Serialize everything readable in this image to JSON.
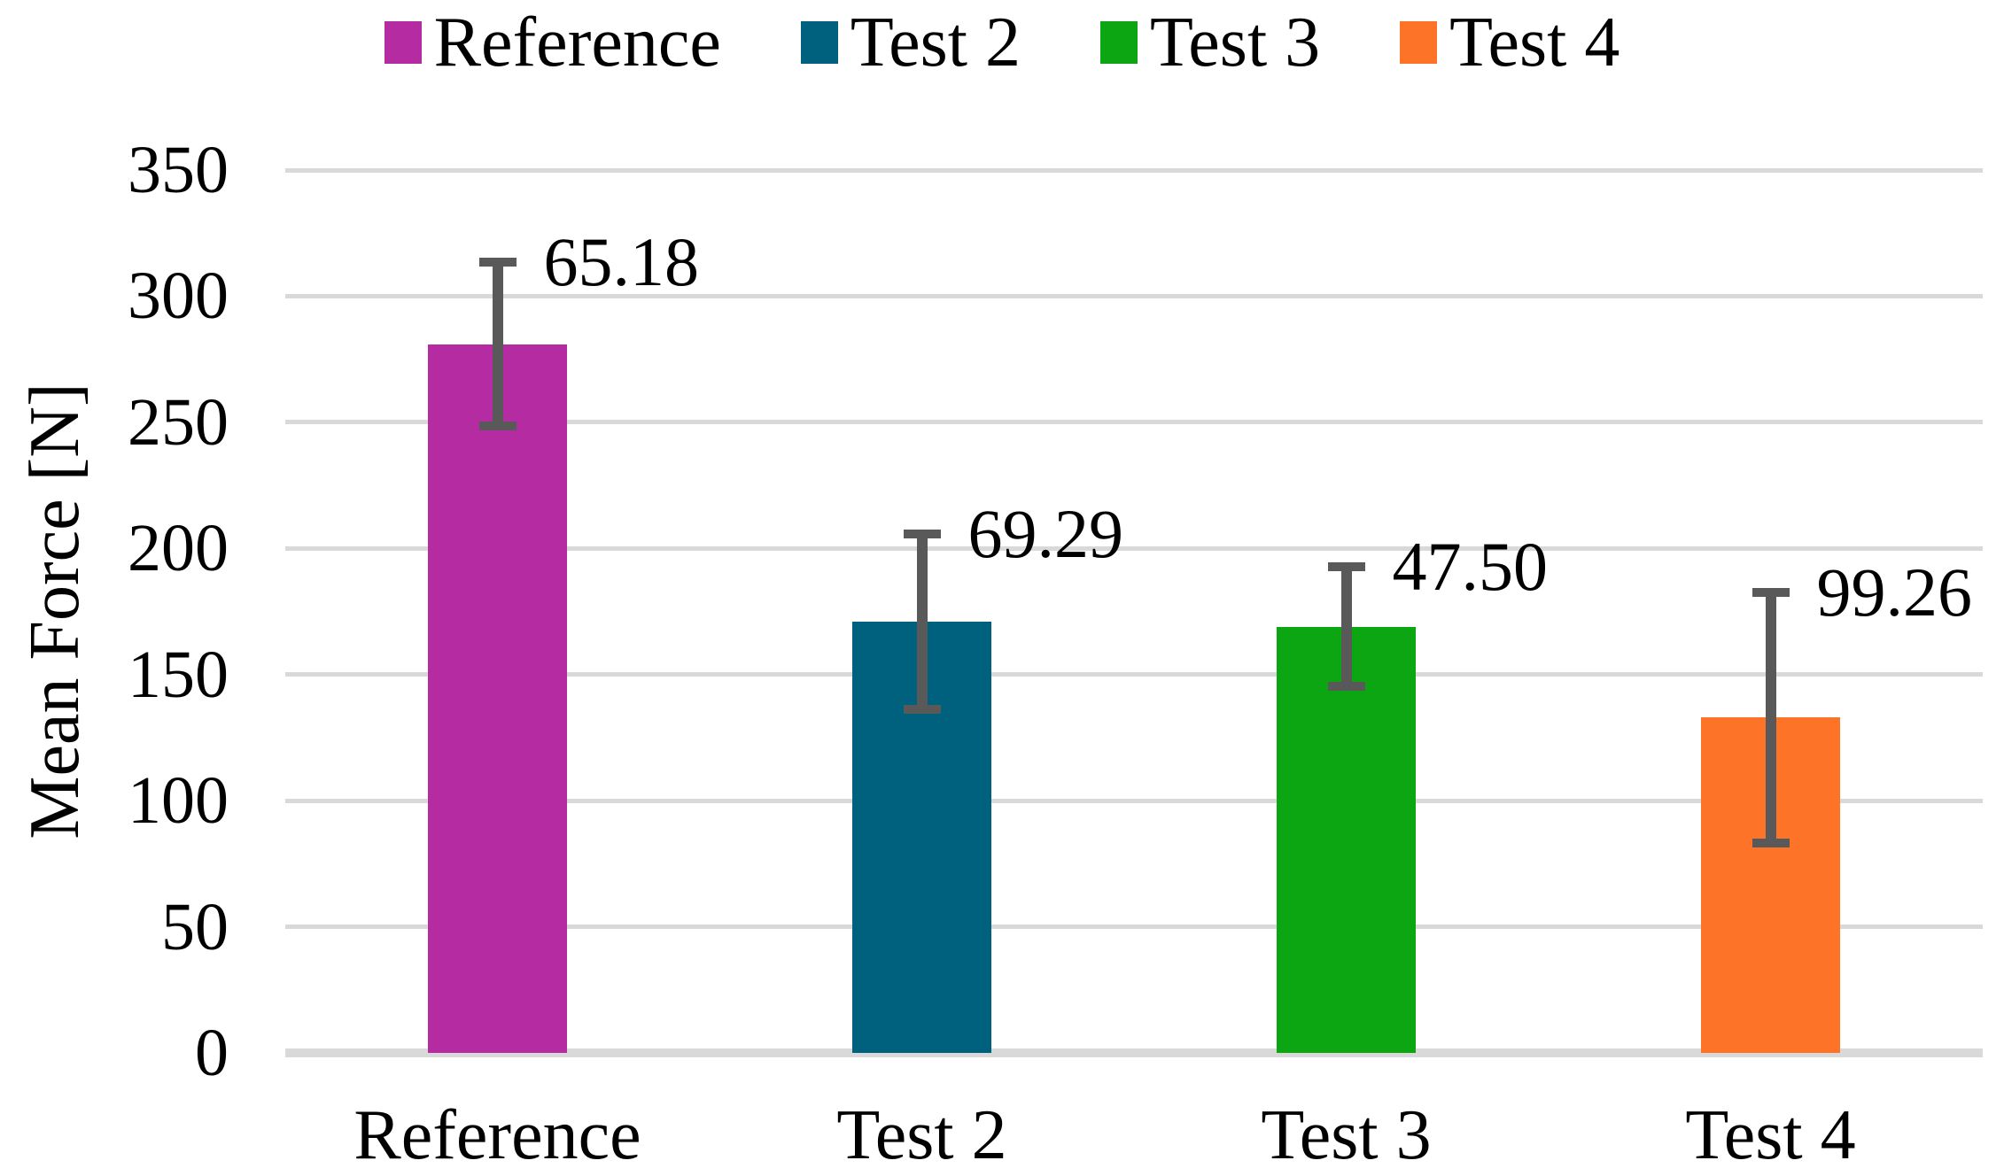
{
  "chart_data": {
    "type": "bar",
    "title": "",
    "ylabel": "Mean Force [N]",
    "xlabel": "",
    "categories": [
      "Reference",
      "Test 2",
      "Test 3",
      "Test 4"
    ],
    "values": [
      281,
      171,
      169,
      133
    ],
    "error_half_ranges": [
      32.59,
      34.65,
      23.75,
      49.63
    ],
    "error_labels": [
      "65.18",
      "69.29",
      "47.50",
      "99.26"
    ],
    "bar_colors": [
      "#B42BA2",
      "#00617F",
      "#0BA612",
      "#FD7428"
    ],
    "legend_entries": [
      "Reference",
      "Test 2",
      "Test 3",
      "Test 4"
    ],
    "legend_position": "top",
    "ylim": [
      0,
      350
    ],
    "ytick_step": 50,
    "ytick_labels": [
      "0",
      "50",
      "100",
      "150",
      "200",
      "250",
      "300",
      "350"
    ],
    "grid": "on",
    "colors": {
      "gridline": "#D9D9D9",
      "axis_line": "#D9D9D9",
      "error_bar": "#595959",
      "text": "#000000",
      "background": "#FFFFFF"
    }
  }
}
